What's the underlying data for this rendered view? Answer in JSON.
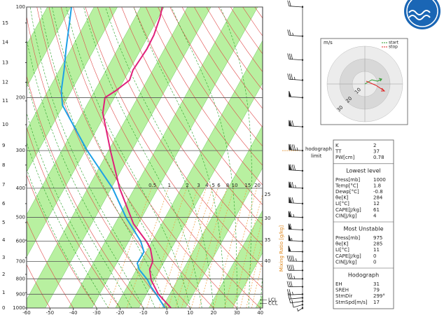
{
  "chart_data": {
    "type": "skewt",
    "xlim": [
      -60,
      41
    ],
    "xticks": [
      -60,
      -50,
      -40,
      -30,
      -20,
      -10,
      0,
      10,
      20,
      30,
      40
    ],
    "ylim": [
      1000,
      100
    ],
    "yticks": [
      100,
      200,
      300,
      400,
      500,
      600,
      700,
      800,
      900,
      1000
    ],
    "log_y": true,
    "grid": true,
    "height_ticks": [
      {
        "value": 1000,
        "label": "0"
      },
      {
        "value": 889,
        "label": "1"
      },
      {
        "value": 773,
        "label": "2"
      },
      {
        "value": 680,
        "label": "3"
      },
      {
        "value": 595,
        "label": "4"
      },
      {
        "value": 520,
        "label": "5"
      },
      {
        "value": 450,
        "label": "6"
      },
      {
        "value": 390,
        "label": "7"
      },
      {
        "value": 335,
        "label": "8"
      },
      {
        "value": 289,
        "label": "9"
      },
      {
        "value": 246,
        "label": "10"
      },
      {
        "value": 205,
        "label": "11"
      },
      {
        "value": 178,
        "label": "12"
      },
      {
        "value": 153,
        "label": "13"
      },
      {
        "value": 131,
        "label": "14"
      },
      {
        "value": 113,
        "label": "15"
      }
    ],
    "series": [
      {
        "color": "#e0207a",
        "pressure": [
          1000,
          898,
          807,
          745,
          700,
          635,
          600,
          525,
          400,
          300,
          225,
          200,
          190,
          175,
          162,
          149,
          138,
          124,
          108,
          100
        ],
        "values": [
          1.8,
          -7.0,
          -13.3,
          -16.4,
          -17.0,
          -21.0,
          -24.5,
          -34.1,
          -48.4,
          -61.2,
          -73.3,
          -76.0,
          -73.1,
          -69.6,
          -70.5,
          -70.0,
          -69.5,
          -69.8,
          -71.4,
          -72.8
        ]
      },
      {
        "color": "#1ea0e6",
        "pressure": [
          1000,
          898,
          851,
          807,
          745,
          710,
          651,
          600,
          500,
          400,
          300,
          212,
          190,
          162,
          138,
          111,
          100
        ],
        "values": [
          -0.8,
          -7.9,
          -11.7,
          -14.8,
          -20.9,
          -23.2,
          -23.0,
          -26.9,
          -38.8,
          -51.4,
          -71.1,
          -92.4,
          -96.3,
          -100.0,
          -104.1,
          -109.2,
          -111.7
        ]
      }
    ],
    "mixing_ratio": {
      "title": "Mixing Ratio [g/kg]",
      "values": [
        0.5,
        1,
        2,
        3,
        4,
        5,
        6,
        8,
        10,
        15,
        20,
        25,
        30,
        35,
        40
      ]
    },
    "levels": [
      {
        "label": "LCL",
        "pressure": 940
      },
      {
        "label": "CCL",
        "pressure": 965
      }
    ],
    "hodograph_limit": {
      "lines": [
        "hodograph",
        "limit"
      ],
      "pressure": 300
    },
    "winds": {
      "pressure": [
        1000,
        975,
        950,
        925,
        900,
        850,
        800,
        750,
        700,
        650,
        600,
        550,
        500,
        450,
        400,
        350,
        300,
        250,
        200,
        175,
        150,
        125,
        100
      ],
      "direction": [
        200,
        220,
        240,
        250,
        260,
        270,
        270,
        270,
        275,
        275,
        280,
        280,
        280,
        285,
        285,
        285,
        285,
        285,
        285,
        285,
        285,
        285,
        285
      ],
      "speed": [
        5,
        10,
        15,
        20,
        25,
        30,
        35,
        40,
        45,
        50,
        55,
        60,
        65,
        70,
        75,
        80,
        85,
        70,
        50,
        35,
        30,
        25,
        20
      ]
    }
  },
  "hodograph": {
    "unit": "m/s",
    "rlim": [
      0,
      30
    ],
    "rticks": [
      10,
      20,
      30
    ],
    "legend": [
      {
        "label": "start",
        "color": "#2a9a2a"
      },
      {
        "label": "stop",
        "color": "#e02020"
      }
    ]
  },
  "indices": {
    "sections": [
      {
        "rows": [
          {
            "label": "K",
            "value": 2
          },
          {
            "label": "TT",
            "value": 37
          },
          {
            "label": "PW[cm]",
            "value": 0.78
          }
        ]
      },
      {
        "title": "Lowest level",
        "rows": [
          {
            "label": "Press[mb]",
            "value": 1000
          },
          {
            "label": "Temp[°C]",
            "value": 1.8
          },
          {
            "label": "Dewp[°C]",
            "value": -0.8
          },
          {
            "label": "θe[K]",
            "value": 284
          },
          {
            "label": "LI[°C]",
            "value": 12
          },
          {
            "label": "CAPE[J/kg]",
            "value": 61
          },
          {
            "label": "CIN[J/kg]",
            "value": 4
          }
        ]
      },
      {
        "title": "Most Unstable",
        "rows": [
          {
            "label": "Press[mb]",
            "value": 975
          },
          {
            "label": "θe[K]",
            "value": 285
          },
          {
            "label": "LI[°C]",
            "value": 11
          },
          {
            "label": "CAPE[J/kg]",
            "value": 0
          },
          {
            "label": "CIN[J/kg]",
            "value": 0
          }
        ]
      },
      {
        "title": "Hodograph",
        "rows": [
          {
            "label": "EH",
            "value": 31
          },
          {
            "label": "SREH",
            "value": 79
          },
          {
            "label": "StmDir",
            "value": 299,
            "value_label": "299°"
          },
          {
            "label": "StmSpd[m/s]",
            "value": 17
          }
        ]
      }
    ]
  }
}
